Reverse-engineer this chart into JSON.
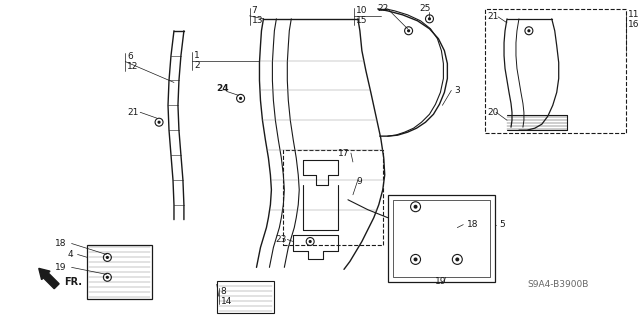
{
  "bg_color": "#ffffff",
  "fig_width": 6.4,
  "fig_height": 3.19,
  "dpi": 100,
  "diagram_code": "S9A4-B3900B"
}
